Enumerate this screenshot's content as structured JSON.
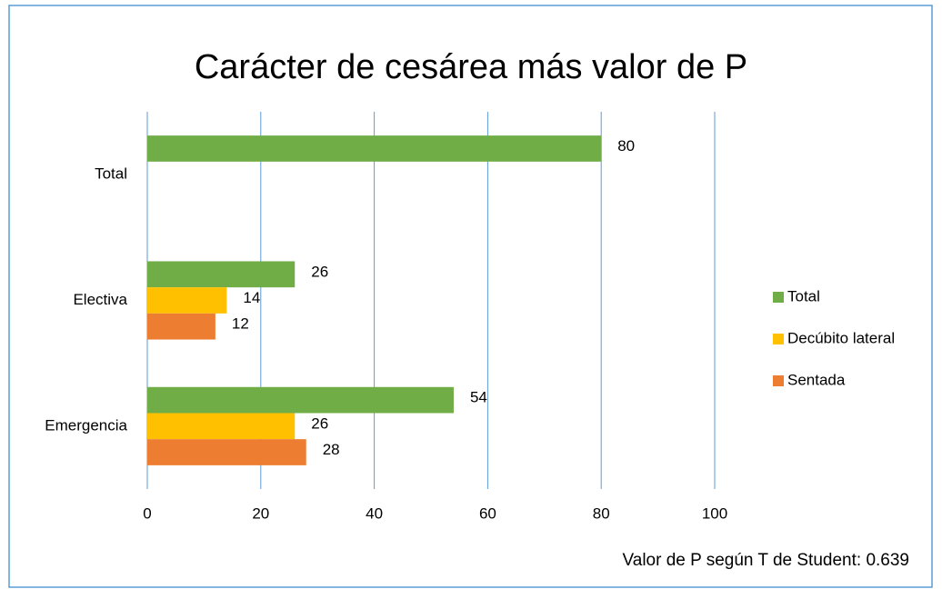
{
  "chart_data": {
    "type": "hbar",
    "title": "Carácter de cesárea más valor de P",
    "categories": [
      "Total",
      "Electiva",
      "Emergencia"
    ],
    "series": [
      {
        "name": "Total",
        "color": "#70ad47",
        "values": [
          80,
          26,
          54
        ]
      },
      {
        "name": "Decúbito lateral",
        "color": "#ffc000",
        "values": [
          null,
          14,
          26
        ]
      },
      {
        "name": "Sentada",
        "color": "#ed7d31",
        "values": [
          null,
          12,
          28
        ]
      }
    ],
    "xlim": [
      0,
      100
    ],
    "xticks": [
      0,
      20,
      40,
      60,
      80,
      100
    ],
    "grid": true,
    "legend": "right",
    "annotation": "Valor de P según T de Student: 0.639"
  }
}
